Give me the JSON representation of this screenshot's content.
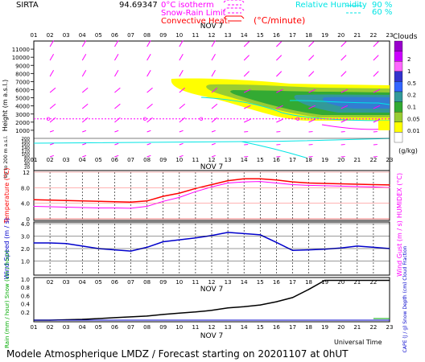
{
  "header": {
    "station": "SIRTA",
    "coord": "94.69347",
    "legend_left": [
      {
        "label": "0°C isotherm",
        "color": "#ff00ff"
      },
      {
        "label": "Snow-Rain Limit",
        "color": "#ff00ff"
      },
      {
        "label": "Convective Heat.",
        "color": "#ff0000"
      }
    ],
    "legend_unit": "(°C/minute)",
    "rh_title": "Relative Humidity",
    "rh_levels": [
      "90 %",
      "60 %"
    ],
    "rh_color": "#00e5e5"
  },
  "hours": [
    "01",
    "02",
    "03",
    "04",
    "05",
    "06",
    "07",
    "08",
    "09",
    "10",
    "11",
    "12",
    "13",
    "14",
    "15",
    "16",
    "17",
    "18",
    "19",
    "20",
    "21",
    "22",
    "23"
  ],
  "date_label": "NOV 7",
  "footer": {
    "universal_time": "Universal Time",
    "model": "Modele Atmospherique LMDZ / Forecast starting on 20201107 at 0hUT"
  },
  "colors": {
    "temperature": "#ff0000",
    "humidex": "#ff00ff",
    "wind": "#0000cc",
    "rain": "#000000",
    "grid": "#000000"
  },
  "chart_data": [
    {
      "type": "heatmap",
      "title": "Clouds",
      "ylabel": "Height (m a.s.l.)",
      "yticks": [
        1000,
        2000,
        3000,
        4000,
        5000,
        6000,
        7000,
        8000,
        9000,
        10000,
        11000
      ],
      "colorbar": {
        "title": "Clouds",
        "unit": "(g/kg)",
        "ticks": [
          "2",
          "1",
          "0.5",
          "0.2",
          "0.1",
          "0.05",
          "0.01"
        ],
        "colors": [
          "#9900cc",
          "#cc00ff",
          "#ff66ff",
          "#3333cc",
          "#3366ff",
          "#339999",
          "#33aa33",
          "#99cc33",
          "#ffff00",
          "#ffffff"
        ]
      },
      "isotherm_0c_m": 2400,
      "lowlevel": {
        "label": "Up to 200 m a.s.l.",
        "yticks": [
          20,
          40,
          60,
          80,
          100,
          120,
          140,
          160,
          180,
          200
        ]
      }
    },
    {
      "type": "line",
      "ylabel": "Temperature (°C)",
      "ylabel_right": "HUMIDEX (°C)",
      "ylim": [
        0,
        12
      ],
      "yticks": [
        "0",
        "4.0",
        "8.0",
        "12"
      ],
      "x": [
        1,
        2,
        3,
        4,
        5,
        6,
        7,
        8,
        9,
        10,
        11,
        12,
        13,
        14,
        15,
        16,
        17,
        18,
        19,
        20,
        21,
        22,
        23
      ],
      "series": [
        {
          "name": "Temperature",
          "values": [
            4.9,
            4.8,
            4.7,
            4.6,
            4.5,
            4.4,
            4.3,
            4.6,
            5.8,
            6.6,
            7.8,
            8.8,
            9.8,
            10.3,
            10.3,
            10.0,
            9.5,
            9.2,
            9.1,
            9.0,
            8.9,
            8.8,
            8.7
          ]
        },
        {
          "name": "HUMIDEX",
          "values": [
            3.2,
            3.1,
            3.0,
            2.9,
            2.8,
            2.8,
            2.7,
            3.2,
            4.5,
            5.5,
            7.0,
            8.2,
            9.2,
            9.5,
            9.6,
            9.2,
            8.8,
            8.6,
            8.5,
            8.4,
            8.3,
            8.2,
            8.0
          ]
        }
      ]
    },
    {
      "type": "line",
      "ylabel": "Wind Speed (m / s)",
      "ylabel_right": "Wind Gust (m / s)",
      "ylim": [
        0,
        4
      ],
      "yticks": [
        "1.0",
        "2.0",
        "3.0",
        "4.0"
      ],
      "x": [
        1,
        2,
        3,
        4,
        5,
        6,
        7,
        8,
        9,
        10,
        11,
        12,
        13,
        14,
        15,
        16,
        17,
        18,
        19,
        20,
        21,
        22,
        23
      ],
      "series": [
        {
          "name": "Wind Speed",
          "values": [
            2.45,
            2.45,
            2.4,
            2.2,
            2.0,
            1.9,
            1.8,
            2.1,
            2.55,
            2.7,
            2.85,
            3.05,
            3.3,
            3.2,
            3.1,
            2.5,
            1.85,
            1.9,
            1.95,
            2.05,
            2.2,
            2.1,
            2.0
          ]
        }
      ]
    },
    {
      "type": "line",
      "ylabel": "Rain (mm / hour) Snow (cm / hour)",
      "ylabel_right": "CAPE (J / g) Snow Depth (cm) Cloud Fraction",
      "ylim": [
        0,
        1
      ],
      "yticks": [
        "0.2",
        "0.4",
        "0.6",
        "0.8",
        "1.0"
      ],
      "x": [
        1,
        2,
        3,
        4,
        5,
        6,
        7,
        8,
        9,
        10,
        11,
        12,
        13,
        14,
        15,
        16,
        17,
        18,
        19,
        20,
        21,
        22,
        23
      ],
      "series": [
        {
          "name": "Cloud Fraction",
          "values": [
            0.0,
            0.0,
            0.01,
            0.02,
            0.04,
            0.06,
            0.08,
            0.1,
            0.14,
            0.17,
            0.2,
            0.24,
            0.3,
            0.33,
            0.37,
            0.45,
            0.55,
            0.75,
            0.97,
            0.97,
            0.97,
            0.97,
            0.97
          ]
        }
      ]
    }
  ]
}
